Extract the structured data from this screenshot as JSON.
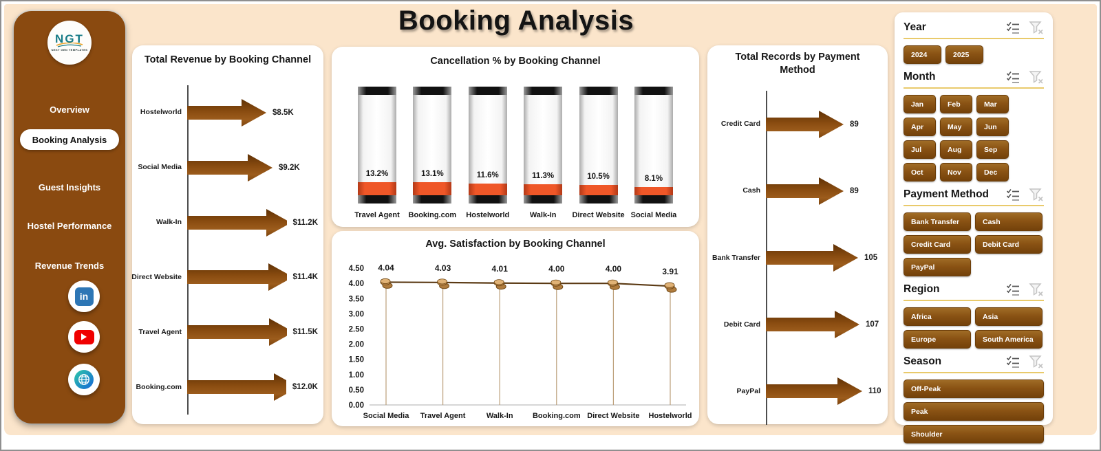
{
  "title": "Booking Analysis",
  "sidebar": {
    "logo_text": "NGT",
    "logo_subtext": "NEXT GEN TEMPLATES",
    "items": [
      {
        "label": "Overview",
        "active": false
      },
      {
        "label": "Booking Analysis",
        "active": true
      },
      {
        "label": "Guest Insights",
        "active": false
      },
      {
        "label": "Hostel Performance",
        "active": false
      },
      {
        "label": "Revenue Trends",
        "active": false
      }
    ],
    "social_icons": [
      "linkedin-icon",
      "youtube-icon",
      "website-globe-icon"
    ]
  },
  "chart_data": [
    {
      "id": "revenue_by_channel",
      "type": "bar",
      "subtype": "arrow",
      "orientation": "horizontal",
      "title": "Total Revenue by Booking Channel",
      "categories": [
        "Hostelworld",
        "Social Media",
        "Walk-In",
        "Direct Website",
        "Travel Agent",
        "Booking.com"
      ],
      "values": [
        8500,
        9200,
        11200,
        11400,
        11500,
        12000
      ],
      "value_labels": [
        "$8.5K",
        "$9.2K",
        "$11.2K",
        "$11.4K",
        "$11.5K",
        "$12.0K"
      ],
      "xlim": [
        0,
        12000
      ],
      "grid": false,
      "legend": false
    },
    {
      "id": "cancellation_by_channel",
      "type": "bar",
      "subtype": "thermometer",
      "orientation": "vertical",
      "title": "Cancellation % by Booking Channel",
      "categories": [
        "Travel Agent",
        "Booking.com",
        "Hostelworld",
        "Walk-In",
        "Direct Website",
        "Social Media"
      ],
      "values": [
        13.2,
        13.1,
        11.6,
        11.3,
        10.5,
        8.1
      ],
      "value_labels": [
        "13.2%",
        "13.1%",
        "11.6%",
        "11.3%",
        "10.5%",
        "8.1%"
      ],
      "ylim": [
        0,
        100
      ],
      "grid": false,
      "legend": false
    },
    {
      "id": "satisfaction_by_channel",
      "type": "line",
      "title": "Avg. Satisfaction by Booking Channel",
      "categories": [
        "Social Media",
        "Travel Agent",
        "Walk-In",
        "Booking.com",
        "Direct Website",
        "Hostelworld"
      ],
      "values": [
        4.04,
        4.03,
        4.01,
        4.0,
        4.0,
        3.91
      ],
      "value_labels": [
        "4.04",
        "4.03",
        "4.01",
        "4.00",
        "4.00",
        "3.91"
      ],
      "ylim": [
        0,
        4.5
      ],
      "ytick_labels": [
        "0.00",
        "0.50",
        "1.00",
        "1.50",
        "2.00",
        "2.50",
        "3.00",
        "3.50",
        "4.00",
        "4.50"
      ],
      "grid": false,
      "legend": false
    },
    {
      "id": "records_by_payment",
      "type": "bar",
      "subtype": "arrow",
      "orientation": "horizontal",
      "title": "Total Records by Payment Method",
      "categories": [
        "Credit Card",
        "Cash",
        "Bank Transfer",
        "Debit Card",
        "PayPal"
      ],
      "values": [
        89,
        89,
        105,
        107,
        110
      ],
      "value_labels": [
        "89",
        "89",
        "105",
        "107",
        "110"
      ],
      "xlim": [
        0,
        110
      ],
      "grid": false,
      "legend": false
    }
  ],
  "filters": {
    "sections": [
      {
        "title": "Year",
        "layout": "auto",
        "buttons": [
          "2024",
          "2025"
        ],
        "icons": [
          "multi-select-icon",
          "clear-filter-icon"
        ]
      },
      {
        "title": "Month",
        "layout": "grid4",
        "buttons": [
          "Jan",
          "Feb",
          "Mar",
          "Apr",
          "May",
          "Jun",
          "Jul",
          "Aug",
          "Sep",
          "Oct",
          "Nov",
          "Dec"
        ],
        "icons": [
          "multi-select-icon",
          "clear-filter-icon"
        ]
      },
      {
        "title": "Payment Method",
        "layout": "grid2",
        "buttons": [
          "Bank Transfer",
          "Cash",
          "Credit Card",
          "Debit Card",
          "PayPal"
        ],
        "icons": [
          "multi-select-icon",
          "clear-filter-icon"
        ]
      },
      {
        "title": "Region",
        "layout": "grid2",
        "buttons": [
          "Africa",
          "Asia",
          "Europe",
          "South America"
        ],
        "icons": [
          "multi-select-icon",
          "clear-filter-icon"
        ]
      },
      {
        "title": "Season",
        "layout": "grid1",
        "buttons": [
          "Off-Peak",
          "Peak",
          "Shoulder"
        ],
        "icons": [
          "multi-select-icon",
          "clear-filter-icon"
        ]
      }
    ]
  },
  "colors": {
    "background": "#fbe5cb",
    "sidebar_brown": "#8a4a10",
    "arrow_dark": "#6b3708",
    "arrow_mid": "#9a571a",
    "tube_fill_red": "#ef5728",
    "slicer_button_brown": "#8a5314",
    "header_underline_gold": "#e9ca6b",
    "logo_teal": "#157a86"
  }
}
